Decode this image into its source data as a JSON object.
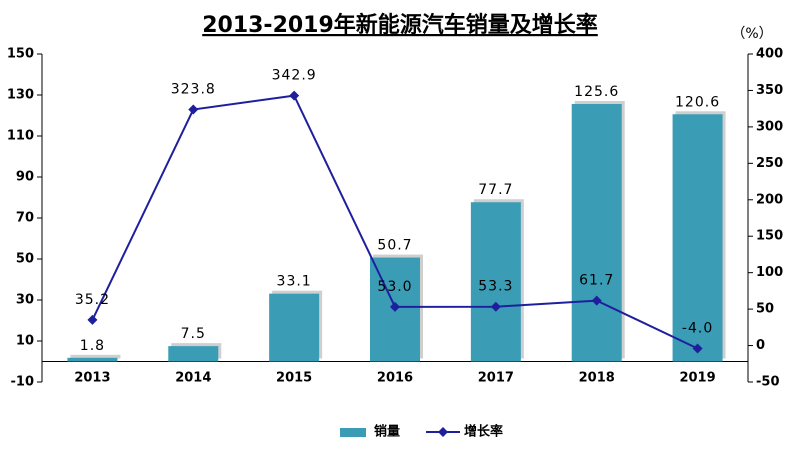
{
  "chart_data": {
    "type": "bar-line",
    "title": "2013-2019年新能源汽车销量及增长率",
    "y2_unit": "（%）",
    "categories": [
      "2013",
      "2014",
      "2015",
      "2016",
      "2017",
      "2018",
      "2019"
    ],
    "series": [
      {
        "name": "销量",
        "type": "bar",
        "color": "#3a9db5",
        "values": [
          1.8,
          7.5,
          33.1,
          50.7,
          77.7,
          125.6,
          120.6
        ]
      },
      {
        "name": "增长率",
        "type": "line",
        "axis": "y2",
        "color": "#1f1f9e",
        "values": [
          35.2,
          323.8,
          342.9,
          53.0,
          53.3,
          61.7,
          -4.0
        ],
        "value_labels": [
          "35.2",
          "323.8",
          "342.9",
          "53.0",
          "53.3",
          "61.7",
          "-4.0"
        ]
      }
    ],
    "ylim": [
      -10,
      150
    ],
    "yticks": [
      -10,
      10,
      30,
      50,
      70,
      90,
      110,
      130,
      150
    ],
    "y2lim": [
      -50,
      400
    ],
    "y2ticks": [
      -50,
      0,
      50,
      100,
      150,
      200,
      250,
      300,
      350,
      400
    ]
  }
}
